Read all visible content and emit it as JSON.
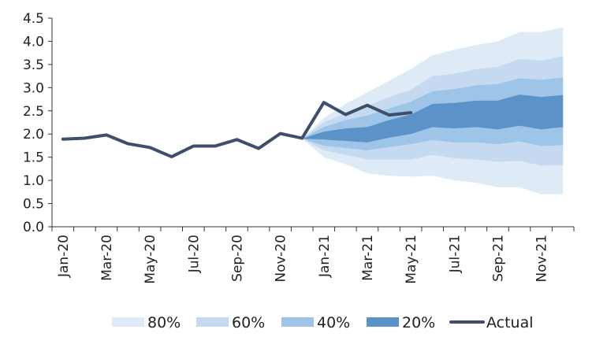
{
  "chart_data": {
    "type": "area",
    "title": "",
    "xlabel": "",
    "ylabel": "",
    "ylim": [
      0,
      4.5
    ],
    "yticks": [
      "0.0",
      "0.5",
      "1.0",
      "1.5",
      "2.0",
      "2.5",
      "3.0",
      "3.5",
      "4.0",
      "4.5"
    ],
    "x": [
      "Jan-20",
      "Feb-20",
      "Mar-20",
      "Apr-20",
      "May-20",
      "Jun-20",
      "Jul-20",
      "Aug-20",
      "Sep-20",
      "Oct-20",
      "Nov-20",
      "Dec-20",
      "Jan-21",
      "Feb-21",
      "Mar-21",
      "Apr-21",
      "May-21",
      "Jun-21",
      "Jul-21",
      "Aug-21",
      "Sep-21",
      "Oct-21",
      "Nov-21",
      "Dec-21"
    ],
    "xtick_labels": [
      "Jan-20",
      "Mar-20",
      "May-20",
      "Jul-20",
      "Sep-20",
      "Nov-20",
      "Jan-21",
      "Mar-21",
      "May-21",
      "Jul-21",
      "Sep-21",
      "Nov-21"
    ],
    "xtick_indices": [
      0,
      2,
      4,
      6,
      8,
      10,
      12,
      14,
      16,
      18,
      20,
      22
    ],
    "actual": {
      "name": "Actual",
      "color": "#3f4e6b",
      "start_index": 0,
      "values": [
        1.89,
        1.91,
        1.98,
        1.79,
        1.71,
        1.51,
        1.74,
        1.74,
        1.88,
        1.69,
        2.01,
        1.91,
        2.68,
        2.42,
        2.62,
        2.41,
        2.46
      ]
    },
    "fan": {
      "start_index": 11,
      "bands": [
        {
          "name": "80%",
          "color": "#deebf7",
          "upper": [
            1.9,
            2.35,
            2.65,
            2.9,
            3.15,
            3.4,
            3.7,
            3.82,
            3.92,
            4.0,
            4.2,
            4.2,
            4.3
          ],
          "lower": [
            1.9,
            1.5,
            1.35,
            1.15,
            1.1,
            1.08,
            1.1,
            1.0,
            0.95,
            0.85,
            0.85,
            0.7,
            0.7
          ]
        },
        {
          "name": "60%",
          "color": "#c5daf0",
          "upper": [
            1.9,
            2.25,
            2.45,
            2.6,
            2.8,
            2.95,
            3.25,
            3.3,
            3.4,
            3.45,
            3.62,
            3.58,
            3.68
          ],
          "lower": [
            1.9,
            1.65,
            1.55,
            1.45,
            1.45,
            1.45,
            1.55,
            1.48,
            1.45,
            1.4,
            1.42,
            1.32,
            1.33
          ]
        },
        {
          "name": "40%",
          "color": "#9ec4e7",
          "upper": [
            1.9,
            2.15,
            2.3,
            2.4,
            2.55,
            2.7,
            2.92,
            2.97,
            3.05,
            3.08,
            3.2,
            3.17,
            3.22
          ],
          "lower": [
            1.9,
            1.75,
            1.7,
            1.65,
            1.72,
            1.78,
            1.87,
            1.82,
            1.82,
            1.78,
            1.84,
            1.74,
            1.76
          ]
        },
        {
          "name": "20%",
          "color": "#5b93c9",
          "upper": [
            1.9,
            2.05,
            2.12,
            2.15,
            2.3,
            2.42,
            2.65,
            2.67,
            2.72,
            2.72,
            2.85,
            2.8,
            2.84
          ],
          "lower": [
            1.9,
            1.88,
            1.85,
            1.82,
            1.92,
            2.0,
            2.15,
            2.12,
            2.15,
            2.1,
            2.18,
            2.1,
            2.15
          ]
        }
      ]
    },
    "legend": {
      "position": "bottom",
      "items": [
        {
          "label": "80%",
          "color": "#deebf7",
          "kind": "band"
        },
        {
          "label": "60%",
          "color": "#c5daf0",
          "kind": "band"
        },
        {
          "label": "40%",
          "color": "#9ec4e7",
          "kind": "band"
        },
        {
          "label": "20%",
          "color": "#5b93c9",
          "kind": "band"
        },
        {
          "label": "Actual",
          "color": "#3f4e6b",
          "kind": "line"
        }
      ]
    },
    "grid": false
  }
}
